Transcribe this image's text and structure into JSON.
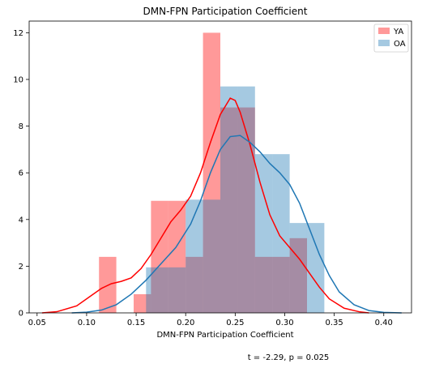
{
  "chart_data": {
    "type": "bar",
    "title": "DMN-FPN Participation Coefficient",
    "xlabel": "DMN-FPN Participation Coefficient",
    "ylabel": "",
    "xlim": [
      0.042,
      0.428
    ],
    "ylim": [
      0,
      12.5
    ],
    "xticks": [
      "0.05",
      "0.10",
      "0.15",
      "0.20",
      "0.25",
      "0.30",
      "0.35",
      "0.40"
    ],
    "yticks": [
      "0",
      "2",
      "4",
      "6",
      "8",
      "10",
      "12"
    ],
    "grid": false,
    "legend_position": "top-right",
    "annotation": "t = -2.29, p = 0.025",
    "series": [
      {
        "name": "YA",
        "color": "#ff0000",
        "bins": [
          {
            "x0": 0.1125,
            "x1": 0.13,
            "value": 2.4
          },
          {
            "x0": 0.13,
            "x1": 0.13,
            "value": 0
          },
          {
            "x0": 0.1475,
            "x1": 0.165,
            "value": 0.8
          },
          {
            "x0": 0.165,
            "x1": 0.1825,
            "value": 4.8
          },
          {
            "x0": 0.1825,
            "x1": 0.2,
            "value": 4.8
          },
          {
            "x0": 0.2,
            "x1": 0.2175,
            "value": 2.4
          },
          {
            "x0": 0.2175,
            "x1": 0.235,
            "value": 12.0
          },
          {
            "x0": 0.235,
            "x1": 0.2525,
            "value": 8.8
          },
          {
            "x0": 0.2525,
            "x1": 0.27,
            "value": 8.8
          },
          {
            "x0": 0.27,
            "x1": 0.2875,
            "value": 2.4
          },
          {
            "x0": 0.2875,
            "x1": 0.305,
            "value": 2.4
          },
          {
            "x0": 0.305,
            "x1": 0.3225,
            "value": 3.2
          }
        ],
        "kde": [
          [
            0.055,
            0.0
          ],
          [
            0.07,
            0.05
          ],
          [
            0.09,
            0.3
          ],
          [
            0.105,
            0.75
          ],
          [
            0.115,
            1.05
          ],
          [
            0.125,
            1.25
          ],
          [
            0.135,
            1.35
          ],
          [
            0.145,
            1.5
          ],
          [
            0.155,
            1.9
          ],
          [
            0.165,
            2.5
          ],
          [
            0.175,
            3.2
          ],
          [
            0.185,
            3.9
          ],
          [
            0.195,
            4.4
          ],
          [
            0.205,
            5.0
          ],
          [
            0.215,
            6.0
          ],
          [
            0.225,
            7.3
          ],
          [
            0.235,
            8.5
          ],
          [
            0.245,
            9.2
          ],
          [
            0.25,
            9.1
          ],
          [
            0.255,
            8.6
          ],
          [
            0.265,
            7.2
          ],
          [
            0.275,
            5.6
          ],
          [
            0.285,
            4.2
          ],
          [
            0.295,
            3.3
          ],
          [
            0.305,
            2.8
          ],
          [
            0.315,
            2.3
          ],
          [
            0.325,
            1.7
          ],
          [
            0.335,
            1.1
          ],
          [
            0.345,
            0.6
          ],
          [
            0.36,
            0.2
          ],
          [
            0.375,
            0.05
          ],
          [
            0.385,
            0.0
          ]
        ]
      },
      {
        "name": "OA",
        "color": "#1f77b4",
        "bins": [
          {
            "x0": 0.16,
            "x1": 0.1825,
            "value": 1.95
          },
          {
            "x0": 0.1825,
            "x1": 0.2,
            "value": 1.95
          },
          {
            "x0": 0.2,
            "x1": 0.2175,
            "value": 4.85
          },
          {
            "x0": 0.2175,
            "x1": 0.235,
            "value": 4.85
          },
          {
            "x0": 0.235,
            "x1": 0.2525,
            "value": 9.7
          },
          {
            "x0": 0.2525,
            "x1": 0.27,
            "value": 9.7
          },
          {
            "x0": 0.27,
            "x1": 0.2875,
            "value": 6.8
          },
          {
            "x0": 0.2875,
            "x1": 0.305,
            "value": 6.8
          },
          {
            "x0": 0.305,
            "x1": 0.3225,
            "value": 3.85
          },
          {
            "x0": 0.3225,
            "x1": 0.34,
            "value": 3.85
          }
        ],
        "kde": [
          [
            0.085,
            0.0
          ],
          [
            0.1,
            0.03
          ],
          [
            0.115,
            0.12
          ],
          [
            0.13,
            0.35
          ],
          [
            0.145,
            0.8
          ],
          [
            0.16,
            1.4
          ],
          [
            0.175,
            2.1
          ],
          [
            0.19,
            2.8
          ],
          [
            0.205,
            3.8
          ],
          [
            0.215,
            4.8
          ],
          [
            0.225,
            6.0
          ],
          [
            0.235,
            7.0
          ],
          [
            0.245,
            7.55
          ],
          [
            0.255,
            7.6
          ],
          [
            0.265,
            7.3
          ],
          [
            0.275,
            6.9
          ],
          [
            0.285,
            6.4
          ],
          [
            0.295,
            6.0
          ],
          [
            0.305,
            5.5
          ],
          [
            0.315,
            4.7
          ],
          [
            0.325,
            3.6
          ],
          [
            0.335,
            2.5
          ],
          [
            0.345,
            1.6
          ],
          [
            0.355,
            0.9
          ],
          [
            0.37,
            0.35
          ],
          [
            0.385,
            0.1
          ],
          [
            0.4,
            0.02
          ],
          [
            0.418,
            0.0
          ]
        ]
      }
    ]
  }
}
